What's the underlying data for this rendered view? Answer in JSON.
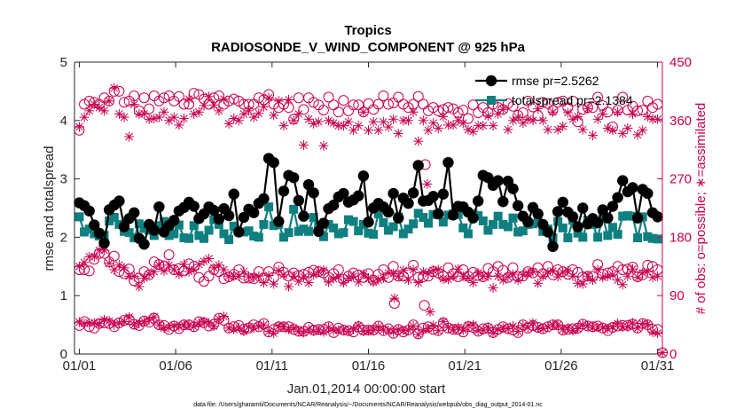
{
  "colors": {
    "rmse": "#000000",
    "spread": "#0f7f7f",
    "obs": "#c8004f",
    "axis": "#262626"
  },
  "chart_data": {
    "type": "line",
    "title": "Tropics",
    "subtitle": "RADIOSONDE_V_WIND_COMPONENT @ 925 hPa",
    "xlabel": "Jan.01,2014 00:00:00 start",
    "ylabel_left": "rmse and totalspread",
    "ylabel_right": "# of obs: o=possible; ∗=assimilated",
    "footer": "data file: /Users/gharamti/Documents/NCAR/Reanalysis/~/Documents/NCAR/Reanalysis/webpub/obs_diag_output_2014-01.nc",
    "xlim": [
      0.75,
      31.25
    ],
    "ylim_left": [
      0,
      5
    ],
    "ylim_right": [
      0,
      450
    ],
    "xticks": [
      1,
      6,
      11,
      16,
      21,
      26,
      31
    ],
    "xticklabels": [
      "01/01",
      "01/06",
      "01/11",
      "01/16",
      "01/21",
      "01/26",
      "01/31"
    ],
    "yticks_left": [
      0,
      1,
      2,
      3,
      4,
      5
    ],
    "yticklabels_left": [
      "0",
      "1",
      "2",
      "3",
      "4",
      "5"
    ],
    "yticks_right": [
      0,
      90,
      180,
      270,
      360,
      450
    ],
    "yticklabels_right": [
      "0",
      "90",
      "180",
      "270",
      "360",
      "450"
    ],
    "legend": [
      {
        "name": "rmse",
        "label": "rmse pr=2.5262"
      },
      {
        "name": "totalspread",
        "label": "totalspread pr=2.1384"
      }
    ],
    "series": {
      "rmse": [
        2.59,
        2.54,
        2.45,
        2.21,
        2.07,
        1.9,
        2.47,
        2.55,
        2.62,
        2.18,
        2.32,
        2.42,
        1.98,
        1.88,
        2.22,
        2.12,
        2.52,
        2.09,
        2.2,
        2.29,
        2.45,
        2.51,
        2.6,
        2.53,
        2.32,
        2.4,
        2.52,
        2.46,
        2.31,
        2.49,
        2.37,
        2.74,
        2.09,
        2.34,
        2.48,
        2.42,
        2.58,
        2.66,
        3.35,
        3.28,
        2.27,
        2.79,
        3.06,
        3.02,
        2.63,
        2.36,
        2.9,
        2.76,
        2.1,
        2.24,
        2.49,
        2.55,
        2.69,
        2.75,
        2.6,
        2.64,
        2.71,
        3.05,
        2.26,
        2.5,
        2.58,
        2.52,
        2.43,
        2.75,
        2.33,
        2.67,
        2.58,
        2.76,
        3.23,
        2.62,
        2.63,
        2.7,
        2.4,
        2.74,
        3.28,
        2.38,
        2.53,
        2.52,
        2.43,
        2.33,
        2.62,
        3.06,
        3.02,
        2.89,
        2.97,
        2.61,
        2.96,
        2.83,
        2.54,
        2.36,
        2.26,
        2.51,
        2.4,
        2.22,
        2.09,
        1.84,
        2.44,
        2.6,
        2.43,
        2.35,
        2.18,
        2.5,
        2.23,
        2.32,
        2.25,
        2.47,
        2.33,
        2.53,
        2.68,
        2.97,
        2.78,
        2.85,
        2.33,
        2.82,
        2.75,
        2.42,
        2.35
      ],
      "totalspread": [
        2.35,
        2.09,
        2.14,
        2.06,
        2.02,
        2.03,
        2.28,
        2.34,
        2.22,
        2.1,
        2.08,
        1.99,
        2.23,
        2.15,
        2.12,
        2.03,
        2.2,
        2.27,
        2.03,
        2.06,
        2.21,
        1.99,
        1.98,
        2.2,
        2.03,
        1.98,
        2.12,
        2.3,
        2.22,
        2.06,
        1.96,
        2.19,
        2.09,
        2.09,
        2.11,
        2.02,
        2.0,
        2.22,
        2.52,
        2.2,
        2.22,
        2.0,
        2.08,
        2.48,
        2.1,
        2.14,
        2.1,
        2.34,
        2.2,
        2.01,
        2.22,
        2.16,
        2.06,
        2.08,
        2.3,
        2.27,
        2.11,
        2.22,
        2.07,
        2.05,
        2.4,
        2.25,
        2.12,
        2.18,
        2.35,
        2.06,
        2.14,
        2.23,
        2.41,
        2.34,
        2.24,
        2.39,
        2.39,
        2.26,
        2.38,
        2.4,
        2.39,
        2.16,
        2.06,
        2.4,
        2.37,
        2.28,
        2.12,
        2.22,
        2.36,
        2.22,
        2.18,
        2.33,
        2.09,
        2.11,
        2.22,
        2.23,
        2.26,
        2.1,
        2.14,
        1.99,
        2.27,
        2.16,
        1.99,
        2.29,
        2.07,
        2.0,
        2.29,
        2.22,
        2.0,
        2.35,
        2.03,
        2.17,
        2.05,
        2.36,
        2.37,
        2.36,
        1.99,
        2.35,
        2.01,
        1.98,
        1.97
      ],
      "possible_high": [
        345,
        385,
        390,
        388,
        385,
        395,
        390,
        405,
        405,
        388,
        390,
        398,
        375,
        395,
        378,
        398,
        390,
        395,
        398,
        390,
        397,
        385,
        385,
        402,
        400,
        393,
        385,
        395,
        398,
        385,
        390,
        393,
        390,
        385,
        385,
        385,
        395,
        392,
        400,
        385,
        380,
        385,
        380,
        362,
        395,
        377,
        395,
        388,
        384,
        376,
        396,
        384,
        373,
        391,
        375,
        384,
        384,
        373,
        386,
        377,
        385,
        398,
        385,
        387,
        396,
        385,
        380,
        385,
        397,
        385,
        375,
        380,
        375,
        377,
        380,
        378,
        372,
        376,
        363,
        384,
        372,
        380,
        372,
        385,
        380,
        377,
        386,
        382,
        368,
        372,
        390,
        381,
        368,
        388,
        386,
        376,
        388,
        390,
        380,
        390,
        358,
        377,
        380,
        380,
        396,
        383,
        373,
        350,
        376,
        396,
        376,
        382,
        375,
        376,
        390,
        380,
        385
      ],
      "assim_high": [
        350,
        365,
        375,
        385,
        380,
        375,
        390,
        410,
        370,
        365,
        335,
        385,
        370,
        370,
        362,
        363,
        365,
        373,
        360,
        365,
        353,
        363,
        393,
        370,
        373,
        383,
        397,
        384,
        375,
        393,
        355,
        363,
        360,
        370,
        375,
        365,
        371,
        381,
        395,
        368,
        390,
        352,
        392,
        360,
        370,
        322,
        362,
        355,
        358,
        321,
        360,
        356,
        352,
        352,
        358,
        345,
        352,
        373,
        345,
        358,
        345,
        358,
        350,
        362,
        340,
        360,
        360,
        373,
        328,
        360,
        345,
        356,
        348,
        366,
        353,
        353,
        360,
        356,
        346,
        343,
        352,
        352,
        367,
        352,
        370,
        377,
        346,
        360,
        365,
        356,
        362,
        360,
        378,
        360,
        346,
        373,
        346,
        351,
        372,
        362,
        366,
        346,
        378,
        337,
        362,
        370,
        348,
        345,
        373,
        340,
        348,
        370,
        338,
        345,
        366,
        362,
        362
      ],
      "possible_mid": [
        130,
        130,
        128,
        146,
        155,
        155,
        142,
        151,
        127,
        124,
        131,
        113,
        117,
        127,
        122,
        142,
        138,
        136,
        153,
        130,
        132,
        128,
        139,
        135,
        118,
        112,
        120,
        130,
        127,
        116,
        119,
        123,
        130,
        117,
        117,
        116,
        127,
        117,
        127,
        118,
        134,
        126,
        120,
        125,
        121,
        123,
        126,
        129,
        127,
        125,
        118,
        124,
        130,
        115,
        120,
        125,
        122,
        118,
        124,
        114,
        123,
        130,
        118,
        135,
        120,
        120,
        125,
        137,
        118,
        119,
        120,
        127,
        125,
        120,
        133,
        124,
        119,
        130,
        120,
        126,
        121,
        119,
        132,
        127,
        135,
        129,
        118,
        133,
        119,
        120,
        127,
        125,
        133,
        124,
        135,
        122,
        130,
        127,
        123,
        130,
        126,
        119,
        120,
        120,
        138,
        123,
        125,
        127,
        135,
        130,
        131,
        134,
        119,
        122,
        137,
        135,
        130
      ],
      "assim_mid": [
        135,
        141,
        150,
        150,
        160,
        160,
        140,
        130,
        137,
        133,
        120,
        120,
        104,
        117,
        123,
        127,
        137,
        128,
        137,
        130,
        123,
        138,
        127,
        130,
        138,
        143,
        147,
        133,
        137,
        130,
        120,
        120,
        120,
        127,
        119,
        118,
        120,
        110,
        121,
        108,
        129,
        122,
        104,
        120,
        112,
        119,
        110,
        122,
        127,
        129,
        111,
        116,
        119,
        110,
        117,
        120,
        111,
        123,
        117,
        111,
        114,
        117,
        125,
        124,
        120,
        129,
        114,
        130,
        110,
        127,
        124,
        129,
        130,
        116,
        115,
        120,
        131,
        120,
        117,
        110,
        125,
        120,
        120,
        102,
        120,
        114,
        119,
        123,
        114,
        122,
        125,
        127,
        109,
        120,
        126,
        128,
        119,
        126,
        128,
        120,
        109,
        108,
        120,
        114,
        130,
        118,
        120,
        122,
        114,
        107,
        120,
        131,
        118,
        125,
        127,
        118,
        120
      ],
      "possible_low": [
        44,
        50,
        42,
        40,
        47,
        48,
        47,
        42,
        48,
        52,
        53,
        46,
        44,
        51,
        49,
        55,
        45,
        44,
        38,
        43,
        39,
        45,
        45,
        42,
        50,
        48,
        43,
        46,
        55,
        52,
        40,
        42,
        44,
        38,
        40,
        45,
        42,
        47,
        34,
        38,
        42,
        42,
        42,
        38,
        35,
        35,
        41,
        37,
        38,
        38,
        42,
        33,
        40,
        37,
        36,
        34,
        42,
        37,
        37,
        37,
        43,
        36,
        39,
        32,
        38,
        34,
        37,
        45,
        31,
        40,
        42,
        38,
        36,
        48,
        40,
        38,
        38,
        34,
        42,
        41,
        35,
        39,
        40,
        33,
        38,
        42,
        39,
        37,
        33,
        45,
        40,
        44,
        41,
        39,
        42,
        45,
        45,
        37,
        38,
        39,
        40,
        46,
        43,
        42,
        43,
        40,
        36,
        41,
        43,
        44,
        44,
        46,
        40,
        47,
        45,
        38,
        38
      ],
      "assim_low": [
        49,
        47,
        48,
        48,
        47,
        53,
        51,
        45,
        48,
        50,
        57,
        45,
        47,
        50,
        52,
        57,
        45,
        40,
        41,
        44,
        42,
        45,
        45,
        42,
        48,
        50,
        48,
        43,
        54,
        58,
        40,
        38,
        41,
        35,
        42,
        40,
        43,
        45,
        35,
        32,
        43,
        42,
        38,
        40,
        35,
        33,
        38,
        35,
        37,
        34,
        41,
        36,
        37,
        37,
        35,
        38,
        44,
        35,
        36,
        37,
        42,
        37,
        37,
        34,
        38,
        36,
        37,
        43,
        30,
        37,
        39,
        44,
        36,
        50,
        41,
        38,
        41,
        37,
        44,
        45,
        36,
        37,
        41,
        32,
        38,
        40,
        39,
        43,
        35,
        44,
        41,
        48,
        40,
        39,
        42,
        45,
        45,
        38,
        40,
        36,
        39,
        45,
        44,
        41,
        41,
        41,
        39,
        42,
        47,
        42,
        42,
        48,
        40,
        47,
        46,
        34,
        32
      ],
      "possible_extra": [
        {
          "x": 17.35,
          "v": 78
        },
        {
          "x": 18.9,
          "v": 75
        },
        {
          "x": 18.95,
          "v": 292
        },
        {
          "x": 31.25,
          "v": 2
        }
      ],
      "assim_extra": [
        {
          "x": 17.35,
          "v": 86
        },
        {
          "x": 19.05,
          "v": 262
        },
        {
          "x": 19.2,
          "v": 65
        },
        {
          "x": 31.25,
          "v": 2
        }
      ]
    }
  }
}
